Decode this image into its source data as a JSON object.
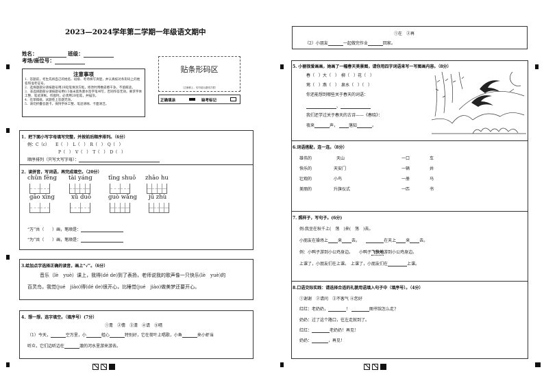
{
  "title": "2023—2024学年第二学期一年级语文期中",
  "header": {
    "name_label": "姓名：",
    "class_label": "班级：",
    "seat_label": "考场/座位号："
  },
  "notes": {
    "title": "注意事项",
    "items": [
      "1．答题前，考生先将自己的姓名、班级、考场填写清楚，并认真核对条形码上的姓名和准考证号。",
      "2．选择题部分请按题号用2B铅笔填涂方框，修改时用橡皮擦干净，不留痕迹。",
      "3．非选择题部分请按题号用0.5毫米黑色墨水签字笔书写，否则作答无效。要求字体工整、笔迹清晰。作图时，必须用2B铅笔，并描浓。",
      "4．在草稿纸、试题卷上答题无效。",
      "5．请勿折叠答题卡，保持字体工整、笔迹清晰、卡面清洁。"
    ]
  },
  "barcode": {
    "title": "贴条形码区",
    "hint": "（正面朝上，切勿贴出虚线方框）",
    "correct_label": "正确填涂",
    "ref_label": "缺考标记"
  },
  "q1": {
    "title": "1．把下面小写字母填写完整，并按前后顺序排列。（6分）",
    "example": "例：C（c）",
    "row1": "E（　）　L（　）　R（　）　Q（　）",
    "row2": "P（　）　V（　）　T（　）　D（　）",
    "order": "顺序排列（只写大写字母）："
  },
  "q2": {
    "title": "2．读拼音，写词语，再完成填空。（20分）",
    "pinyin": [
      {
        "text": "chūn fēng",
        "cells": 2
      },
      {
        "text": "tài yáng",
        "cells": 4
      },
      {
        "text": "tīng shuō",
        "cells": 2
      },
      {
        "text": "zhāo hu",
        "cells": 4
      },
      {
        "text": "gāo xìng",
        "cells": 2
      },
      {
        "text": "xǔ duō",
        "cells": 2
      },
      {
        "text": "guò wǎng",
        "cells": 4
      },
      {
        "text": "jū zhù",
        "cells": 4
      }
    ],
    "fill1": "“万”共（　　）画，笔顺是：",
    "fill2": "“为”共（　　）画，笔顺是："
  },
  "q3": {
    "title": "3.给加点字选择正确的读音，画上“√”。（6分）",
    "line1": "音乐（lè　yuè）课上，我得(dé de)到了表扬，老师说我的歌声像一只快乐(lè　yuè)的",
    "line2": "百灵鸟，我觉(jué　jiào)得(dé de)很开心，比睡觉(jué　jiào)做美梦还要开心。"
  },
  "q4": {
    "title": "4．想一想，选字填空。（填序号）(7分）",
    "options1": "①青　②情　③清　④请　⑤晴",
    "s1a": "（1）今天，",
    "s1b": "空万里，小",
    "s1c": "蛙心",
    "s1d": "特别好，它在荷叶上唱歌，小鱼",
    "s1e": "来小虾当",
    "s1f": "听众，它们边听边在",
    "s1g": "澈的河水里游来游去。",
    "options2": "①在　②再",
    "s2a": "（2）小朋友",
    "s2b": "一起做完作业",
    "s2c": "回家。"
  },
  "q5": {
    "title": "5. 小丽很爱画画，她画了一幅春天美景图，请你用四字词语来写一写图画内容。（8分）",
    "r1": "春（　）大（　）　柳（　）花（　）",
    "r2": "莺（　）燕（　）　泉水（　）（　）",
    "r3": "你还能想到哪些关于春天的词语：",
    "sep": "、",
    "r4": "我们还学过关于春天的古诗——《春晓》：",
    "r5a": "夜来",
    "r5b": "声，",
    "r5c": "落知",
    "r5d": "。"
  },
  "q6": {
    "title": "6.词语搭配，连一连。（8分）",
    "left": [
      "雄伟的",
      "快乐的",
      "壮观的",
      "美丽的"
    ],
    "mid": [
      "天山",
      "天安门",
      "小鸟",
      "升旗仪式"
    ],
    "quant": [
      "一口",
      "一辆",
      "一册",
      "一匹"
    ],
    "noun": [
      "车",
      "井",
      "马",
      "书"
    ]
  },
  "q7": {
    "title": "7. 照样子，写句子。(6分)",
    "ex1": "例:我坐在秋千上(　荡　)来(　荡　)去。",
    "s1a": "小朋友在操场上",
    "s1b": "来",
    "s1c": "去。",
    "s1d": "在天上",
    "s1e": "来",
    "s1f": "去。",
    "ex2a": "例：小鸭子游到小公鸡身边。　　小鸭子",
    "ex2b": "飞快地",
    "ex2c": "游到小公鸡身边。",
    "s2a": "上课了，小朋友们在上课。　上课了，小朋友们在",
    "s2b": "上课。"
  },
  "q8": {
    "title": "8.口语交际实践：请选择合适的礼貌用语填入句子中（填序号）。（4分）",
    "options": "①谢谢　②请问　③不客气 ④您好",
    "l1a": "红红：老奶奶，",
    "l1b": "！",
    "l1c": "图书馆怎么走?",
    "l2": "奶奶：过了这个路口，往左走就到了。",
    "l3a": "红红：",
    "l3b": "老奶奶！再见!",
    "l4a": "奶奶：",
    "l4b": "，再见！"
  }
}
